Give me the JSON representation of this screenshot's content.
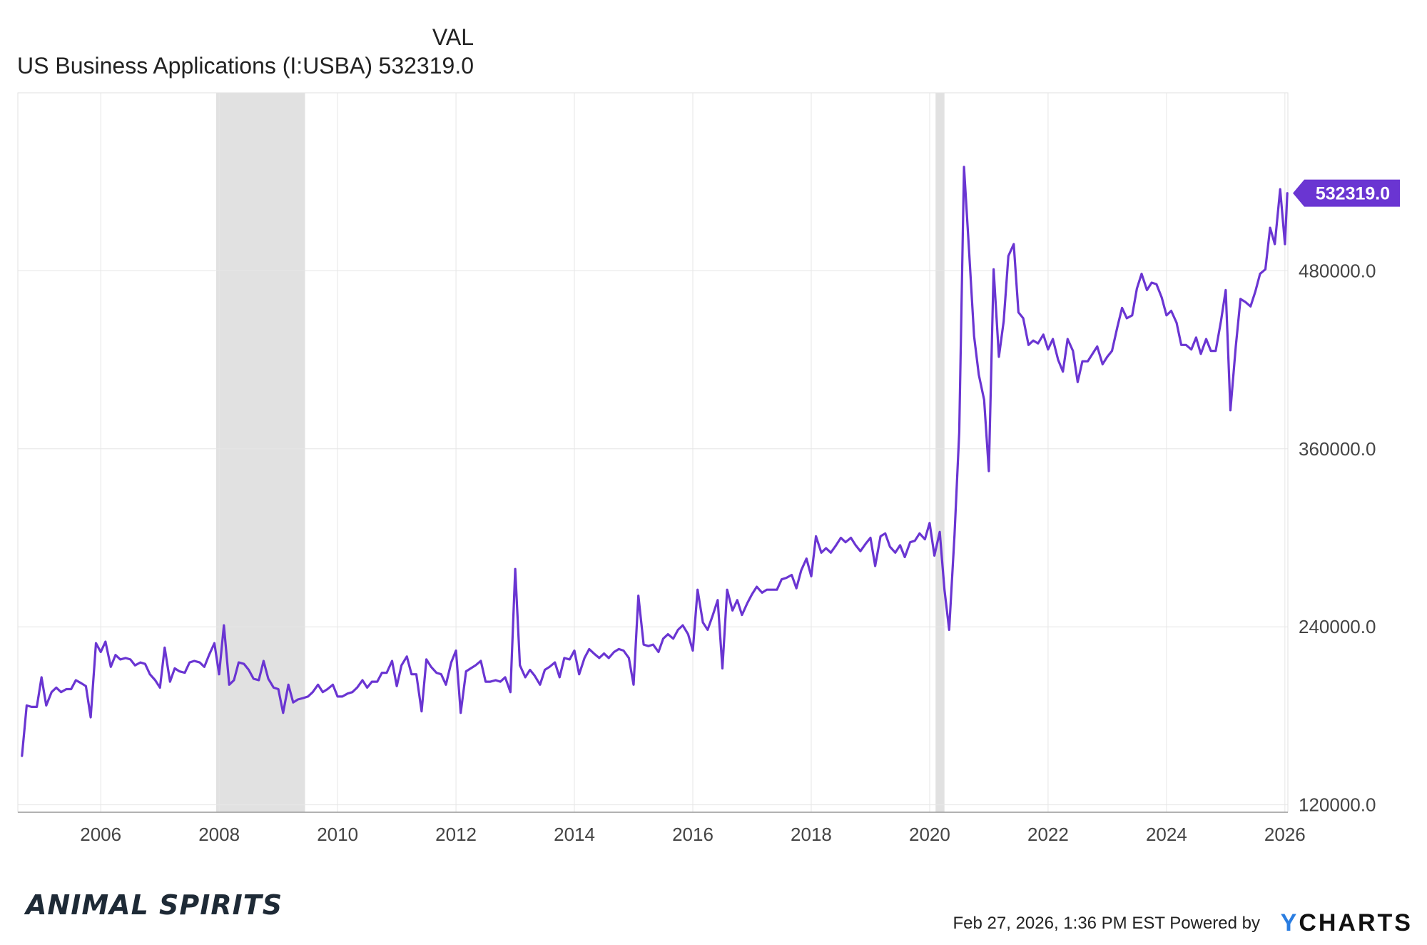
{
  "legend": {
    "column_header": "VAL",
    "series_label": "US Business Applications (I:USBA)",
    "series_value": "532319.0"
  },
  "footer": {
    "brand": "ANIMAL SPIRITS",
    "timestamp": "Feb 27, 2026, 1:36 PM EST Powered by",
    "logo_y": "Y",
    "logo_rest": "CHARTS"
  },
  "colors": {
    "series": "#6a35d2",
    "recession_band": "#e1e1e1",
    "grid": "#e6e6e6",
    "axis_text": "#444444"
  },
  "chart_data": {
    "type": "line",
    "title": "",
    "xlabel": "",
    "ylabel": "",
    "xlim": [
      2004.6,
      2026.05
    ],
    "ylim": [
      115000,
      600000
    ],
    "x_ticks": [
      2006,
      2008,
      2010,
      2012,
      2014,
      2016,
      2018,
      2020,
      2022,
      2024,
      2026
    ],
    "y_ticks": [
      120000,
      240000,
      360000,
      480000
    ],
    "y_tick_labels": [
      "120000.0",
      "240000.0",
      "360000.0",
      "480000.0"
    ],
    "grid": true,
    "last_value_label": "532319.0",
    "recession_bands": [
      [
        2007.95,
        2009.45
      ],
      [
        2020.1,
        2020.25
      ]
    ],
    "series": [
      {
        "name": "US Business Applications (I:USBA)",
        "points": [
          [
            2004.67,
            153000
          ],
          [
            2004.75,
            187000
          ],
          [
            2004.83,
            186000
          ],
          [
            2004.92,
            186000
          ],
          [
            2005.0,
            206000
          ],
          [
            2005.08,
            187000
          ],
          [
            2005.17,
            196000
          ],
          [
            2005.25,
            199000
          ],
          [
            2005.33,
            196000
          ],
          [
            2005.42,
            198000
          ],
          [
            2005.5,
            198000
          ],
          [
            2005.58,
            204000
          ],
          [
            2005.67,
            202000
          ],
          [
            2005.75,
            200000
          ],
          [
            2005.83,
            179000
          ],
          [
            2005.92,
            229000
          ],
          [
            2006.0,
            223000
          ],
          [
            2006.08,
            230000
          ],
          [
            2006.17,
            213000
          ],
          [
            2006.25,
            221000
          ],
          [
            2006.33,
            218000
          ],
          [
            2006.42,
            219000
          ],
          [
            2006.5,
            218000
          ],
          [
            2006.58,
            214000
          ],
          [
            2006.67,
            216000
          ],
          [
            2006.75,
            215000
          ],
          [
            2006.83,
            208000
          ],
          [
            2006.92,
            204000
          ],
          [
            2007.0,
            199000
          ],
          [
            2007.08,
            226000
          ],
          [
            2007.17,
            203000
          ],
          [
            2007.25,
            212000
          ],
          [
            2007.33,
            210000
          ],
          [
            2007.42,
            209000
          ],
          [
            2007.5,
            216000
          ],
          [
            2007.58,
            217000
          ],
          [
            2007.67,
            216000
          ],
          [
            2007.75,
            213000
          ],
          [
            2007.83,
            221000
          ],
          [
            2007.92,
            229000
          ],
          [
            2008.0,
            208000
          ],
          [
            2008.08,
            241000
          ],
          [
            2008.17,
            201000
          ],
          [
            2008.25,
            204000
          ],
          [
            2008.33,
            216000
          ],
          [
            2008.42,
            215000
          ],
          [
            2008.5,
            211000
          ],
          [
            2008.58,
            205000
          ],
          [
            2008.67,
            204000
          ],
          [
            2008.75,
            217000
          ],
          [
            2008.83,
            205000
          ],
          [
            2008.92,
            199000
          ],
          [
            2009.0,
            198000
          ],
          [
            2009.08,
            182000
          ],
          [
            2009.17,
            201000
          ],
          [
            2009.25,
            189000
          ],
          [
            2009.33,
            191000
          ],
          [
            2009.42,
            192000
          ],
          [
            2009.5,
            193000
          ],
          [
            2009.58,
            196000
          ],
          [
            2009.67,
            201000
          ],
          [
            2009.75,
            196000
          ],
          [
            2009.83,
            198000
          ],
          [
            2009.92,
            201000
          ],
          [
            2010.0,
            193000
          ],
          [
            2010.08,
            193000
          ],
          [
            2010.17,
            195000
          ],
          [
            2010.25,
            196000
          ],
          [
            2010.33,
            199000
          ],
          [
            2010.42,
            204000
          ],
          [
            2010.5,
            199000
          ],
          [
            2010.58,
            203000
          ],
          [
            2010.67,
            203000
          ],
          [
            2010.75,
            209000
          ],
          [
            2010.83,
            209000
          ],
          [
            2010.92,
            217000
          ],
          [
            2011.0,
            200000
          ],
          [
            2011.08,
            214000
          ],
          [
            2011.17,
            220000
          ],
          [
            2011.25,
            208000
          ],
          [
            2011.33,
            208000
          ],
          [
            2011.42,
            183000
          ],
          [
            2011.5,
            218000
          ],
          [
            2011.58,
            213000
          ],
          [
            2011.67,
            209000
          ],
          [
            2011.75,
            208000
          ],
          [
            2011.83,
            201000
          ],
          [
            2011.92,
            216000
          ],
          [
            2012.0,
            224000
          ],
          [
            2012.08,
            182000
          ],
          [
            2012.17,
            210000
          ],
          [
            2012.25,
            212000
          ],
          [
            2012.33,
            214000
          ],
          [
            2012.42,
            217000
          ],
          [
            2012.5,
            203000
          ],
          [
            2012.58,
            203000
          ],
          [
            2012.67,
            204000
          ],
          [
            2012.75,
            203000
          ],
          [
            2012.83,
            206000
          ],
          [
            2012.92,
            196000
          ],
          [
            2013.0,
            279000
          ],
          [
            2013.08,
            214000
          ],
          [
            2013.17,
            206000
          ],
          [
            2013.25,
            211000
          ],
          [
            2013.33,
            207000
          ],
          [
            2013.42,
            201000
          ],
          [
            2013.5,
            211000
          ],
          [
            2013.58,
            213000
          ],
          [
            2013.67,
            216000
          ],
          [
            2013.75,
            206000
          ],
          [
            2013.83,
            219000
          ],
          [
            2013.92,
            218000
          ],
          [
            2014.0,
            224000
          ],
          [
            2014.08,
            208000
          ],
          [
            2014.17,
            219000
          ],
          [
            2014.25,
            225000
          ],
          [
            2014.33,
            222000
          ],
          [
            2014.42,
            219000
          ],
          [
            2014.5,
            222000
          ],
          [
            2014.58,
            219000
          ],
          [
            2014.67,
            223000
          ],
          [
            2014.75,
            225000
          ],
          [
            2014.83,
            224000
          ],
          [
            2014.92,
            219000
          ],
          [
            2015.0,
            201000
          ],
          [
            2015.08,
            261000
          ],
          [
            2015.17,
            228000
          ],
          [
            2015.25,
            227000
          ],
          [
            2015.33,
            228000
          ],
          [
            2015.42,
            223000
          ],
          [
            2015.5,
            232000
          ],
          [
            2015.58,
            235000
          ],
          [
            2015.67,
            232000
          ],
          [
            2015.75,
            238000
          ],
          [
            2015.83,
            241000
          ],
          [
            2015.92,
            235000
          ],
          [
            2016.0,
            224000
          ],
          [
            2016.08,
            265000
          ],
          [
            2016.17,
            243000
          ],
          [
            2016.25,
            238000
          ],
          [
            2016.33,
            247000
          ],
          [
            2016.42,
            258000
          ],
          [
            2016.5,
            212000
          ],
          [
            2016.58,
            265000
          ],
          [
            2016.67,
            251000
          ],
          [
            2016.75,
            258000
          ],
          [
            2016.83,
            248000
          ],
          [
            2016.92,
            256000
          ],
          [
            2017.0,
            262000
          ],
          [
            2017.08,
            267000
          ],
          [
            2017.17,
            263000
          ],
          [
            2017.25,
            265000
          ],
          [
            2017.33,
            265000
          ],
          [
            2017.42,
            265000
          ],
          [
            2017.5,
            272000
          ],
          [
            2017.58,
            273000
          ],
          [
            2017.67,
            275000
          ],
          [
            2017.75,
            266000
          ],
          [
            2017.83,
            278000
          ],
          [
            2017.92,
            286000
          ],
          [
            2018.0,
            274000
          ],
          [
            2018.08,
            301000
          ],
          [
            2018.17,
            290000
          ],
          [
            2018.25,
            293000
          ],
          [
            2018.33,
            290000
          ],
          [
            2018.42,
            295000
          ],
          [
            2018.5,
            300000
          ],
          [
            2018.58,
            297000
          ],
          [
            2018.67,
            300000
          ],
          [
            2018.75,
            295000
          ],
          [
            2018.83,
            291000
          ],
          [
            2018.92,
            296000
          ],
          [
            2019.0,
            300000
          ],
          [
            2019.08,
            281000
          ],
          [
            2019.17,
            301000
          ],
          [
            2019.25,
            303000
          ],
          [
            2019.33,
            294000
          ],
          [
            2019.42,
            290000
          ],
          [
            2019.5,
            295000
          ],
          [
            2019.58,
            287000
          ],
          [
            2019.67,
            297000
          ],
          [
            2019.75,
            298000
          ],
          [
            2019.83,
            303000
          ],
          [
            2019.92,
            299000
          ],
          [
            2020.0,
            310000
          ],
          [
            2020.08,
            288000
          ],
          [
            2020.17,
            304000
          ],
          [
            2020.25,
            265000
          ],
          [
            2020.33,
            238000
          ],
          [
            2020.42,
            302000
          ],
          [
            2020.5,
            371000
          ],
          [
            2020.58,
            550000
          ],
          [
            2020.67,
            491000
          ],
          [
            2020.75,
            436000
          ],
          [
            2020.83,
            410000
          ],
          [
            2020.92,
            393000
          ],
          [
            2021.0,
            345000
          ],
          [
            2021.08,
            481000
          ],
          [
            2021.17,
            422000
          ],
          [
            2021.25,
            446000
          ],
          [
            2021.33,
            490000
          ],
          [
            2021.42,
            498000
          ],
          [
            2021.5,
            452000
          ],
          [
            2021.58,
            448000
          ],
          [
            2021.67,
            430000
          ],
          [
            2021.75,
            433000
          ],
          [
            2021.83,
            431000
          ],
          [
            2021.92,
            437000
          ],
          [
            2022.0,
            427000
          ],
          [
            2022.08,
            434000
          ],
          [
            2022.17,
            420000
          ],
          [
            2022.25,
            412000
          ],
          [
            2022.33,
            434000
          ],
          [
            2022.42,
            426000
          ],
          [
            2022.5,
            405000
          ],
          [
            2022.58,
            419000
          ],
          [
            2022.67,
            419000
          ],
          [
            2022.75,
            424000
          ],
          [
            2022.83,
            429000
          ],
          [
            2022.92,
            417000
          ],
          [
            2023.0,
            422000
          ],
          [
            2023.08,
            426000
          ],
          [
            2023.17,
            442000
          ],
          [
            2023.25,
            455000
          ],
          [
            2023.33,
            448000
          ],
          [
            2023.42,
            450000
          ],
          [
            2023.5,
            468000
          ],
          [
            2023.58,
            478000
          ],
          [
            2023.67,
            467000
          ],
          [
            2023.75,
            472000
          ],
          [
            2023.83,
            471000
          ],
          [
            2023.92,
            462000
          ],
          [
            2024.0,
            450000
          ],
          [
            2024.08,
            453000
          ],
          [
            2024.17,
            445000
          ],
          [
            2024.25,
            430000
          ],
          [
            2024.33,
            430000
          ],
          [
            2024.42,
            427000
          ],
          [
            2024.5,
            435000
          ],
          [
            2024.58,
            424000
          ],
          [
            2024.67,
            434000
          ],
          [
            2024.75,
            426000
          ],
          [
            2024.83,
            426000
          ],
          [
            2024.92,
            446000
          ],
          [
            2025.0,
            467000
          ],
          [
            2025.08,
            386000
          ],
          [
            2025.17,
            429000
          ],
          [
            2025.25,
            461000
          ],
          [
            2025.33,
            459000
          ],
          [
            2025.42,
            456000
          ],
          [
            2025.5,
            466000
          ],
          [
            2025.58,
            478000
          ],
          [
            2025.67,
            481000
          ],
          [
            2025.75,
            509000
          ],
          [
            2025.83,
            498000
          ],
          [
            2025.92,
            535000
          ],
          [
            2026.0,
            498000
          ],
          [
            2026.04,
            532319
          ]
        ]
      }
    ]
  }
}
